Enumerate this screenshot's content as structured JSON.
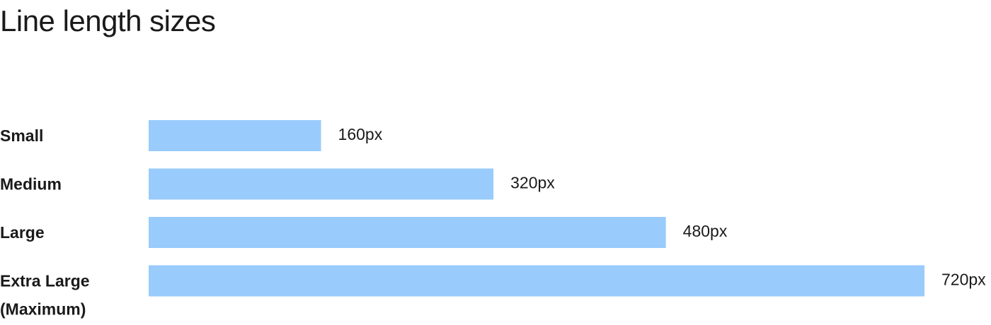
{
  "chart_data": {
    "type": "bar",
    "orientation": "horizontal",
    "title": "Line length sizes",
    "categories": [
      "Small",
      "Medium",
      "Large",
      "Extra Large\n(Maximum)"
    ],
    "values": [
      160,
      320,
      480,
      720
    ],
    "value_labels": [
      "160px",
      "320px",
      "480px",
      "720px"
    ],
    "unit": "px",
    "bar_color": "#99cbfd",
    "grid": false,
    "legend": "none"
  }
}
